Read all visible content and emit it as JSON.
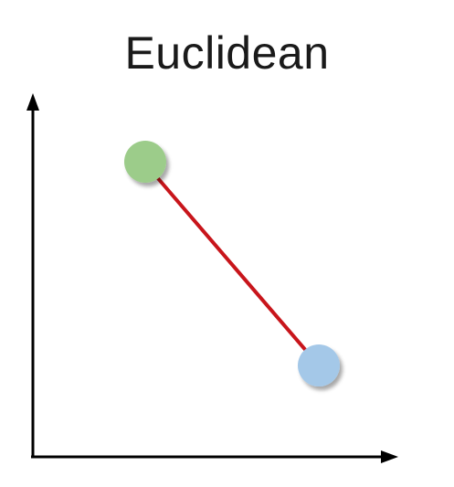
{
  "diagram": {
    "title": "Euclidean",
    "points": [
      {
        "name": "green-point",
        "color": "#9ccc8a"
      },
      {
        "name": "blue-point",
        "color": "#a4c8e8"
      }
    ],
    "connector_color": "#c8151b",
    "axis_color": "#000000"
  }
}
